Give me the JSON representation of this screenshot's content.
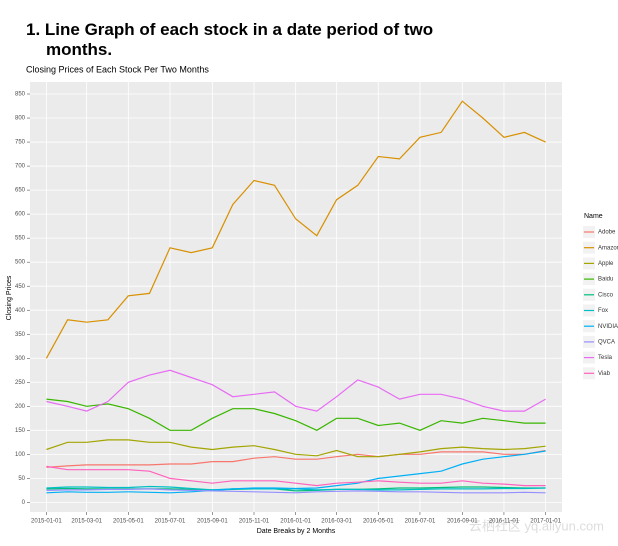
{
  "heading": "1. Line Graph of each stock in a date period of two months.",
  "watermark": "云栖社区 yq.aliyun.com",
  "chart_data": {
    "type": "line",
    "title": "Closing Prices of Each Stock Per Two Months",
    "x_label": "Date Breaks by 2 Months",
    "y_label": "Closing Prices",
    "legend_title": "Name",
    "legend": "right",
    "grid": true,
    "x": [
      "2015-01-01",
      "2015-02-01",
      "2015-03-01",
      "2015-04-01",
      "2015-05-01",
      "2015-06-01",
      "2015-07-01",
      "2015-08-01",
      "2015-09-01",
      "2015-10-01",
      "2015-11-01",
      "2015-12-01",
      "2016-01-01",
      "2016-02-01",
      "2016-03-01",
      "2016-04-01",
      "2016-05-01",
      "2016-06-01",
      "2016-07-01",
      "2016-08-01",
      "2016-09-01",
      "2016-10-01",
      "2016-11-01",
      "2016-12-01",
      "2017-01-01"
    ],
    "xlim": [
      "2014-12-08",
      "2017-01-25"
    ],
    "xticks": [
      "2015-01-01",
      "2015-03-01",
      "2015-05-01",
      "2015-07-01",
      "2015-09-01",
      "2015-11-01",
      "2016-01-01",
      "2016-03-01",
      "2016-05-01",
      "2016-07-01",
      "2016-09-01",
      "2016-11-01",
      "2017-01-01"
    ],
    "ylim": [
      -20,
      875
    ],
    "yticks": [
      0,
      50,
      100,
      150,
      200,
      250,
      300,
      350,
      400,
      450,
      500,
      550,
      600,
      650,
      700,
      750,
      800,
      850
    ],
    "series": [
      {
        "name": "Adobe",
        "color": "#F8766D",
        "values": [
          73,
          76,
          78,
          78,
          78,
          78,
          80,
          80,
          85,
          85,
          92,
          95,
          90,
          90,
          95,
          100,
          95,
          100,
          100,
          105,
          105,
          105,
          100,
          100,
          108
        ]
      },
      {
        "name": "Amazon",
        "color": "#D89000",
        "values": [
          300,
          380,
          375,
          380,
          430,
          435,
          530,
          520,
          530,
          620,
          670,
          660,
          590,
          555,
          630,
          660,
          720,
          715,
          760,
          770,
          835,
          800,
          760,
          770,
          750
        ]
      },
      {
        "name": "Apple",
        "color": "#A3A500",
        "values": [
          110,
          125,
          125,
          130,
          130,
          125,
          125,
          115,
          110,
          115,
          118,
          110,
          100,
          97,
          108,
          95,
          95,
          100,
          105,
          112,
          115,
          112,
          110,
          112,
          117
        ]
      },
      {
        "name": "Baidu",
        "color": "#39B600",
        "values": [
          215,
          210,
          200,
          205,
          195,
          175,
          150,
          150,
          175,
          195,
          195,
          185,
          170,
          150,
          175,
          175,
          160,
          165,
          150,
          170,
          165,
          175,
          170,
          165,
          165
        ]
      },
      {
        "name": "Cisco",
        "color": "#00BF7D",
        "values": [
          28,
          29,
          28,
          28,
          28,
          28,
          28,
          27,
          26,
          27,
          28,
          28,
          24,
          25,
          27,
          27,
          28,
          30,
          30,
          31,
          32,
          32,
          31,
          30,
          30
        ]
      },
      {
        "name": "Fox",
        "color": "#00BFC4",
        "values": [
          30,
          32,
          32,
          31,
          31,
          33,
          32,
          29,
          26,
          28,
          28,
          28,
          28,
          26,
          27,
          27,
          26,
          26,
          27,
          28,
          28,
          28,
          29,
          29,
          30
        ]
      },
      {
        "name": "NVIDIA",
        "color": "#00B0F6",
        "values": [
          20,
          22,
          21,
          21,
          22,
          21,
          20,
          22,
          25,
          28,
          30,
          30,
          29,
          30,
          35,
          40,
          50,
          55,
          60,
          65,
          80,
          90,
          95,
          100,
          107
        ]
      },
      {
        "name": "QVCA",
        "color": "#9590FF",
        "values": [
          25,
          26,
          26,
          27,
          27,
          28,
          26,
          25,
          24,
          23,
          22,
          21,
          20,
          22,
          23,
          24,
          23,
          22,
          22,
          21,
          20,
          20,
          20,
          21,
          20
        ]
      },
      {
        "name": "Tesla",
        "color": "#E76BF3",
        "values": [
          210,
          200,
          190,
          210,
          250,
          265,
          275,
          260,
          245,
          220,
          225,
          230,
          200,
          190,
          220,
          255,
          240,
          215,
          225,
          225,
          215,
          200,
          190,
          190,
          215
        ]
      },
      {
        "name": "Viab",
        "color": "#FF62BC",
        "values": [
          75,
          68,
          68,
          68,
          68,
          65,
          50,
          45,
          40,
          45,
          45,
          45,
          40,
          35,
          40,
          42,
          45,
          42,
          40,
          40,
          45,
          40,
          38,
          35,
          35
        ]
      }
    ]
  }
}
